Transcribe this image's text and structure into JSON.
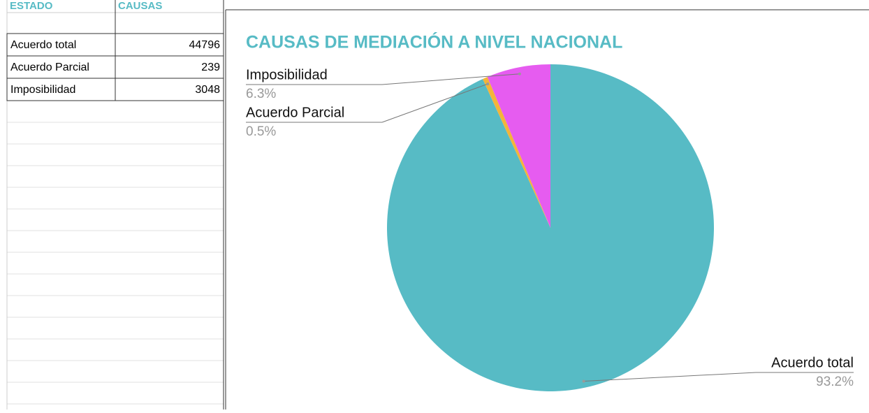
{
  "table": {
    "headers": [
      "ESTADO",
      "CAUSAS"
    ],
    "rows": [
      [
        "Acuerdo total",
        44796
      ],
      [
        "Acuerdo Parcial",
        239
      ],
      [
        "Imposibilidad",
        3048
      ]
    ]
  },
  "chart_data": {
    "type": "pie",
    "title": "CAUSAS DE MEDIACIÓN A NIVEL NACIONAL",
    "categories": [
      "Acuerdo total",
      "Acuerdo Parcial",
      "Imposibilidad"
    ],
    "values": [
      93.2,
      0.5,
      6.3
    ],
    "value_labels": [
      "93.2%",
      "0.5%",
      "6.3%"
    ],
    "colors": [
      "#57bbc5",
      "#f4b43a",
      "#e65cf0"
    ]
  }
}
